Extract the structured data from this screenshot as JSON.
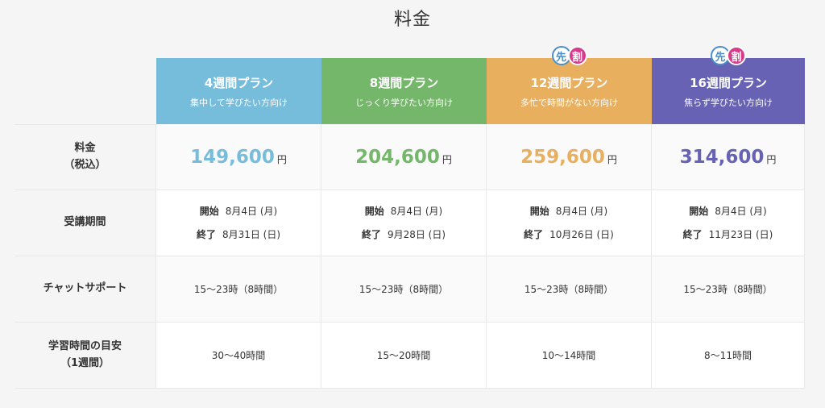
{
  "title": "料金",
  "badge": {
    "left": "先",
    "right": "割"
  },
  "row_headers": [
    {
      "line1": "料金",
      "line2": "（税込）"
    },
    {
      "line1": "受講期間",
      "line2": ""
    },
    {
      "line1": "チャットサポート",
      "line2": ""
    },
    {
      "line1": "学習時間の目安",
      "line2": "（1週間）"
    }
  ],
  "plans": [
    {
      "name": "4週間プラン",
      "subtitle": "集中して学びたい方向け",
      "price": "149,600",
      "currency": "円",
      "start_label": "開始",
      "start_date": "8月4日 (月)",
      "end_label": "終了",
      "end_date": "8月31日 (日)",
      "support": "15〜23時（8時間）",
      "study_time": "30〜40時間",
      "color": "#76bddc"
    },
    {
      "name": "8週間プラン",
      "subtitle": "じっくり学びたい方向け",
      "price": "204,600",
      "currency": "円",
      "start_label": "開始",
      "start_date": "8月4日 (月)",
      "end_label": "終了",
      "end_date": "9月28日 (日)",
      "support": "15〜23時（8時間）",
      "study_time": "15〜20時間",
      "color": "#74b76a"
    },
    {
      "name": "12週間プラン",
      "subtitle": "多忙で時間がない方向け",
      "price": "259,600",
      "currency": "円",
      "start_label": "開始",
      "start_date": "8月4日 (月)",
      "end_label": "終了",
      "end_date": "10月26日 (日)",
      "support": "15〜23時（8時間）",
      "study_time": "10〜14時間",
      "color": "#e8af5e"
    },
    {
      "name": "16週間プラン",
      "subtitle": "焦らず学びたい方向け",
      "price": "314,600",
      "currency": "円",
      "start_label": "開始",
      "start_date": "8月4日 (月)",
      "end_label": "終了",
      "end_date": "11月23日 (日)",
      "support": "15〜23時（8時間）",
      "study_time": "8〜11時間",
      "color": "#6762b3"
    }
  ]
}
